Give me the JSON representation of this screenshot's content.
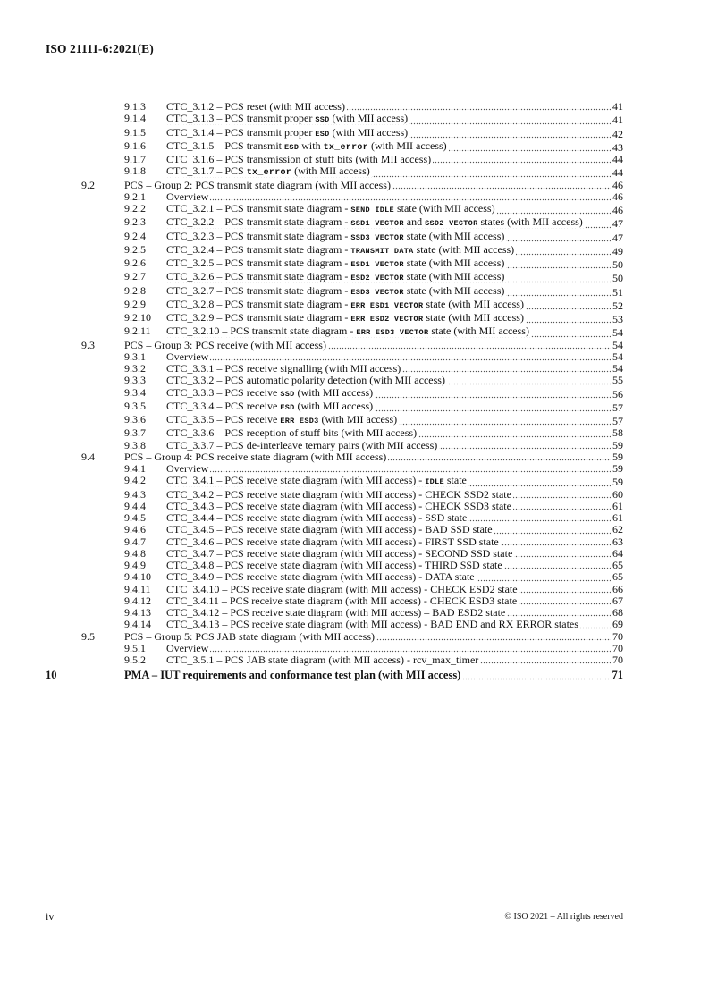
{
  "header": {
    "title": "ISO 21111-6:2021(E)"
  },
  "toc": {
    "entries": [
      {
        "level": 3,
        "num": "9.1.3",
        "parts": [
          {
            "text": "CTC_3.1.2 – PCS reset (with MII access)"
          }
        ],
        "page": "41"
      },
      {
        "level": 3,
        "num": "9.1.4",
        "parts": [
          {
            "text": "CTC_3.1.3 – PCS transmit proper "
          },
          {
            "text": "SSD",
            "code": true
          },
          {
            "text": " (with MII access)"
          }
        ],
        "page": "41"
      },
      {
        "level": 3,
        "num": "9.1.5",
        "parts": [
          {
            "text": "CTC_3.1.4 – PCS transmit proper "
          },
          {
            "text": "ESD",
            "code": true
          },
          {
            "text": " (with MII access)"
          }
        ],
        "page": "42"
      },
      {
        "level": 3,
        "num": "9.1.6",
        "parts": [
          {
            "text": "CTC_3.1.5 – PCS transmit "
          },
          {
            "text": "ESD",
            "code": true
          },
          {
            "text": " with "
          },
          {
            "text": "tx_error",
            "code": true,
            "lower": true
          },
          {
            "text": " (with MII access)"
          }
        ],
        "page": "43"
      },
      {
        "level": 3,
        "num": "9.1.7",
        "parts": [
          {
            "text": "CTC_3.1.6 – PCS transmission of stuff bits (with MII access)"
          }
        ],
        "page": "44"
      },
      {
        "level": 3,
        "num": "9.1.8",
        "parts": [
          {
            "text": "CTC_3.1.7 – PCS "
          },
          {
            "text": "tx_error",
            "code": true,
            "lower": true
          },
          {
            "text": " (with MII access)"
          }
        ],
        "page": "44"
      },
      {
        "level": 2,
        "num": "9.2",
        "parts": [
          {
            "text": "PCS – Group 2: PCS transmit state diagram (with MII access)"
          }
        ],
        "page": "46"
      },
      {
        "level": 3,
        "num": "9.2.1",
        "parts": [
          {
            "text": "Overview"
          }
        ],
        "page": "46"
      },
      {
        "level": 3,
        "num": "9.2.2",
        "parts": [
          {
            "text": "CTC_3.2.1 – PCS transmit state diagram - "
          },
          {
            "text": "SEND IDLE",
            "code": true
          },
          {
            "text": " state (with MII access)"
          }
        ],
        "page": "46"
      },
      {
        "level": 3,
        "num": "9.2.3",
        "parts": [
          {
            "text": "CTC_3.2.2 – PCS transmit state diagram - "
          },
          {
            "text": "SSD1 VECTOR",
            "code": true
          },
          {
            "text": " and "
          },
          {
            "text": "SSD2 VECTOR",
            "code": true
          },
          {
            "text": " states (with MII access)"
          }
        ],
        "page": "47"
      },
      {
        "level": 3,
        "num": "9.2.4",
        "parts": [
          {
            "text": "CTC_3.2.3 – PCS transmit state diagram - "
          },
          {
            "text": "SSD3 VECTOR",
            "code": true
          },
          {
            "text": " state (with MII access)"
          }
        ],
        "page": "47"
      },
      {
        "level": 3,
        "num": "9.2.5",
        "parts": [
          {
            "text": "CTC_3.2.4 – PCS transmit state diagram - "
          },
          {
            "text": "TRANSMIT DATA",
            "code": true
          },
          {
            "text": " state (with MII access)"
          }
        ],
        "page": "49"
      },
      {
        "level": 3,
        "num": "9.2.6",
        "parts": [
          {
            "text": "CTC_3.2.5 – PCS transmit state diagram - "
          },
          {
            "text": "ESD1 VECTOR",
            "code": true
          },
          {
            "text": " state (with MII access)"
          }
        ],
        "page": "50"
      },
      {
        "level": 3,
        "num": "9.2.7",
        "parts": [
          {
            "text": "CTC_3.2.6 – PCS transmit state diagram - "
          },
          {
            "text": "ESD2 VECTOR",
            "code": true
          },
          {
            "text": " state (with MII access)"
          }
        ],
        "page": "50"
      },
      {
        "level": 3,
        "num": "9.2.8",
        "parts": [
          {
            "text": "CTC_3.2.7 – PCS transmit state diagram - "
          },
          {
            "text": "ESD3 VECTOR",
            "code": true
          },
          {
            "text": " state (with MII access)"
          }
        ],
        "page": "51"
      },
      {
        "level": 3,
        "num": "9.2.9",
        "parts": [
          {
            "text": "CTC_3.2.8 – PCS transmit state diagram - "
          },
          {
            "text": "ERR ESD1 VECTOR",
            "code": true
          },
          {
            "text": " state (with MII access)"
          }
        ],
        "page": "52"
      },
      {
        "level": 3,
        "num": "9.2.10",
        "parts": [
          {
            "text": "CTC_3.2.9 – PCS transmit state diagram - "
          },
          {
            "text": "ERR ESD2 VECTOR",
            "code": true
          },
          {
            "text": " state (with MII access)"
          }
        ],
        "page": "53"
      },
      {
        "level": 3,
        "num": "9.2.11",
        "parts": [
          {
            "text": "CTC_3.2.10 – PCS transmit state diagram - "
          },
          {
            "text": "ERR ESD3 VECTOR",
            "code": true
          },
          {
            "text": " state (with MII access)"
          }
        ],
        "page": "54"
      },
      {
        "level": 2,
        "num": "9.3",
        "parts": [
          {
            "text": "PCS – Group 3: PCS receive (with MII access)"
          }
        ],
        "page": "54"
      },
      {
        "level": 3,
        "num": "9.3.1",
        "parts": [
          {
            "text": "Overview"
          }
        ],
        "page": "54"
      },
      {
        "level": 3,
        "num": "9.3.2",
        "parts": [
          {
            "text": "CTC_3.3.1 – PCS receive signalling (with MII access)"
          }
        ],
        "page": "54"
      },
      {
        "level": 3,
        "num": "9.3.3",
        "parts": [
          {
            "text": "CTC_3.3.2 – PCS automatic polarity detection (with MII access)"
          }
        ],
        "page": "55"
      },
      {
        "level": 3,
        "num": "9.3.4",
        "parts": [
          {
            "text": "CTC_3.3.3 – PCS receive "
          },
          {
            "text": "SSD",
            "code": true
          },
          {
            "text": " (with MII access)"
          }
        ],
        "page": "56"
      },
      {
        "level": 3,
        "num": "9.3.5",
        "parts": [
          {
            "text": "CTC_3.3.4 – PCS receive "
          },
          {
            "text": "ESD",
            "code": true
          },
          {
            "text": " (with MII access)"
          }
        ],
        "page": "57"
      },
      {
        "level": 3,
        "num": "9.3.6",
        "parts": [
          {
            "text": "CTC_3.3.5 – PCS receive "
          },
          {
            "text": "ERR ESD3",
            "code": true
          },
          {
            "text": " (with MII access)"
          }
        ],
        "page": "57"
      },
      {
        "level": 3,
        "num": "9.3.7",
        "parts": [
          {
            "text": "CTC_3.3.6 – PCS reception of stuff bits (with MII access)"
          }
        ],
        "page": "58"
      },
      {
        "level": 3,
        "num": "9.3.8",
        "parts": [
          {
            "text": "CTC_3.3.7 – PCS de-interleave ternary pairs (with MII access)"
          }
        ],
        "page": "59"
      },
      {
        "level": 2,
        "num": "9.4",
        "parts": [
          {
            "text": "PCS – Group 4: PCS receive state diagram (with MII access)"
          }
        ],
        "page": "59"
      },
      {
        "level": 3,
        "num": "9.4.1",
        "parts": [
          {
            "text": "Overview"
          }
        ],
        "page": "59"
      },
      {
        "level": 3,
        "num": "9.4.2",
        "parts": [
          {
            "text": "CTC_3.4.1 – PCS receive state diagram (with MII access) - "
          },
          {
            "text": "IDLE",
            "code": true
          },
          {
            "text": " state"
          }
        ],
        "page": "59"
      },
      {
        "level": 3,
        "num": "9.4.3",
        "parts": [
          {
            "text": "CTC_3.4.2 – PCS receive state diagram (with MII access) - CHECK SSD2 state"
          }
        ],
        "page": "60"
      },
      {
        "level": 3,
        "num": "9.4.4",
        "parts": [
          {
            "text": "CTC_3.4.3 – PCS receive state diagram (with MII access) - CHECK SSD3 state"
          }
        ],
        "page": "61"
      },
      {
        "level": 3,
        "num": "9.4.5",
        "parts": [
          {
            "text": "CTC_3.4.4 – PCS receive state diagram (with MII access) - SSD state"
          }
        ],
        "page": "61"
      },
      {
        "level": 3,
        "num": "9.4.6",
        "parts": [
          {
            "text": "CTC_3.4.5 – PCS receive state diagram (with MII access) - BAD SSD state"
          }
        ],
        "page": "62"
      },
      {
        "level": 3,
        "num": "9.4.7",
        "parts": [
          {
            "text": "CTC_3.4.6 – PCS receive state diagram (with MII access) - FIRST SSD state"
          }
        ],
        "page": "63"
      },
      {
        "level": 3,
        "num": "9.4.8",
        "parts": [
          {
            "text": "CTC_3.4.7 – PCS receive state diagram (with MII access) - SECOND SSD state"
          }
        ],
        "page": "64"
      },
      {
        "level": 3,
        "num": "9.4.9",
        "parts": [
          {
            "text": "CTC_3.4.8 – PCS receive state diagram (with MII access) - THIRD SSD state"
          }
        ],
        "page": "65"
      },
      {
        "level": 3,
        "num": "9.4.10",
        "parts": [
          {
            "text": "CTC_3.4.9 – PCS receive state diagram (with MII access) - DATA state"
          }
        ],
        "page": "65"
      },
      {
        "level": 3,
        "num": "9.4.11",
        "parts": [
          {
            "text": "CTC_3.4.10 – PCS receive state diagram (with MII access) - CHECK ESD2 state"
          }
        ],
        "page": "66"
      },
      {
        "level": 3,
        "num": "9.4.12",
        "parts": [
          {
            "text": "CTC_3.4.11 – PCS receive state diagram (with MII access) - CHECK ESD3 state"
          }
        ],
        "page": "67"
      },
      {
        "level": 3,
        "num": "9.4.13",
        "parts": [
          {
            "text": "CTC_3.4.12 – PCS receive state diagram (with MII access) – BAD ESD2 state"
          }
        ],
        "page": "68"
      },
      {
        "level": 3,
        "num": "9.4.14",
        "parts": [
          {
            "text": "CTC_3.4.13 – PCS receive state diagram (with MII access) - BAD END and RX ERROR states"
          }
        ],
        "page": "69"
      },
      {
        "level": 2,
        "num": "9.5",
        "parts": [
          {
            "text": "PCS – Group 5: PCS JAB state diagram (with MII access)"
          }
        ],
        "page": "70"
      },
      {
        "level": 3,
        "num": "9.5.1",
        "parts": [
          {
            "text": "Overview"
          }
        ],
        "page": "70"
      },
      {
        "level": 3,
        "num": "9.5.2",
        "parts": [
          {
            "text": "CTC_3.5.1 – PCS JAB state diagram (with MII access) - rcv_max_timer"
          }
        ],
        "page": "70"
      },
      {
        "level": 1,
        "num": "10",
        "parts": [
          {
            "text": "PMA – IUT requirements and conformance test plan (with MII access)"
          }
        ],
        "page": "71"
      }
    ]
  },
  "footer": {
    "page_label": "iv",
    "copyright": "© ISO 2021 – All rights reserved"
  }
}
